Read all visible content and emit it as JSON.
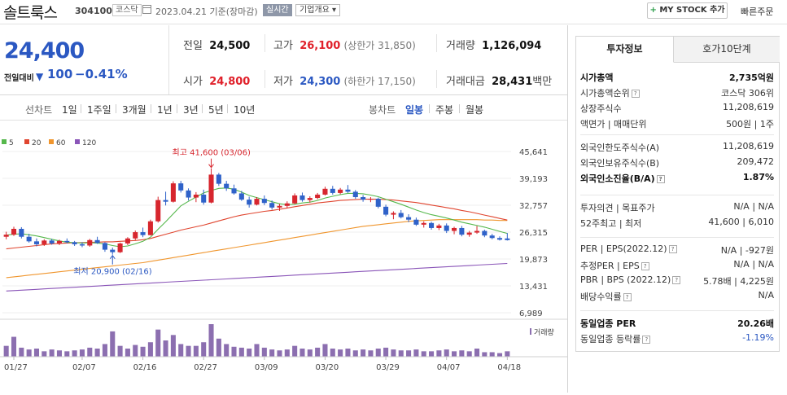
{
  "header": {
    "stock_name": "솔트룩스",
    "stock_code": "304100",
    "market": "코스닥",
    "as_of": "2023.04.21  기준(장마감)",
    "realtime_label": "실시간",
    "corp_info_label": "기업개요 ▾",
    "mystock_label": "MY STOCK 추가",
    "quick_order_label": "빠른주문"
  },
  "price": {
    "current": "24,400",
    "change_label": "전일대비",
    "change_arrow": "▼",
    "change_value": "100",
    "change_pct": "−0.41%"
  },
  "quote": {
    "prev_close_label": "전일",
    "prev_close": "24,500",
    "high_label": "고가",
    "high": "26,100",
    "upper_limit": "(상한가 31,850)",
    "volume_label": "거래량",
    "volume": "1,126,094",
    "open_label": "시가",
    "open": "24,800",
    "low_label": "저가",
    "low": "24,300",
    "lower_limit": "(하한가 17,150)",
    "amount_label": "거래대금",
    "amount": "28,431",
    "amount_unit": "백만"
  },
  "periods": {
    "line_label": "선차트",
    "line_items": [
      "1일",
      "1주일",
      "3개월",
      "1년",
      "3년",
      "5년",
      "10년"
    ],
    "candle_label": "봉차트",
    "candle_items": [
      "일봉",
      "주봉",
      "월봉"
    ],
    "candle_active": "일봉"
  },
  "legend": [
    {
      "label": "5",
      "color": "#56b84c"
    },
    {
      "label": "20",
      "color": "#e0452f"
    },
    {
      "label": "60",
      "color": "#f0962e"
    },
    {
      "label": "120",
      "color": "#8a55b8"
    }
  ],
  "chart_data": {
    "type": "candlestick",
    "y_ticks": [
      "45,641",
      "39,193",
      "32,757",
      "26,315",
      "19,873",
      "13,431",
      "6,989"
    ],
    "ylim": [
      6989,
      45641
    ],
    "x_ticks": [
      "01/27",
      "02/07",
      "02/16",
      "02/27",
      "03/09",
      "03/20",
      "03/29",
      "04/07",
      "04/18"
    ],
    "annotations": {
      "high": "최고 41,600 (03/06)",
      "low": "최저 20,900 (02/16)"
    },
    "volume_label": "거래량",
    "up_color": "#d7262e",
    "down_color": "#2f62c9",
    "candles": [
      [
        25200,
        26400,
        24600,
        25700
      ],
      [
        25700,
        27600,
        25400,
        27100
      ],
      [
        27100,
        27500,
        24800,
        25200
      ],
      [
        25200,
        25900,
        23800,
        24100
      ],
      [
        24100,
        24800,
        22900,
        23400
      ],
      [
        23400,
        24600,
        23000,
        24300
      ],
      [
        24300,
        24700,
        23300,
        23600
      ],
      [
        23600,
        24500,
        23200,
        24200
      ],
      [
        24200,
        24800,
        23600,
        23900
      ],
      [
        23900,
        24200,
        23000,
        23400
      ],
      [
        23400,
        23900,
        22700,
        23100
      ],
      [
        23100,
        24700,
        22800,
        24400
      ],
      [
        24400,
        25200,
        23500,
        23700
      ],
      [
        23700,
        23900,
        21600,
        22100
      ],
      [
        22100,
        22600,
        20900,
        21500
      ],
      [
        21500,
        23800,
        21300,
        23600
      ],
      [
        23600,
        25100,
        23200,
        24800
      ],
      [
        24800,
        26700,
        24400,
        26300
      ],
      [
        26300,
        27400,
        25100,
        25600
      ],
      [
        25600,
        29300,
        25500,
        28900
      ],
      [
        28900,
        34800,
        28600,
        34000
      ],
      [
        34000,
        36000,
        32700,
        33600
      ],
      [
        33600,
        38500,
        33400,
        38000
      ],
      [
        38000,
        38600,
        35800,
        36300
      ],
      [
        36300,
        36800,
        33900,
        34600
      ],
      [
        34600,
        35900,
        33500,
        35300
      ],
      [
        35300,
        36500,
        32900,
        33400
      ],
      [
        33400,
        41600,
        33200,
        40100
      ],
      [
        40100,
        40500,
        37400,
        37900
      ],
      [
        37900,
        38600,
        36200,
        36800
      ],
      [
        36800,
        37700,
        35300,
        35600
      ],
      [
        35600,
        36200,
        33800,
        34100
      ],
      [
        34100,
        34800,
        32200,
        32900
      ],
      [
        32900,
        34700,
        32700,
        34300
      ],
      [
        34300,
        35100,
        32800,
        33300
      ],
      [
        33300,
        33900,
        31700,
        32200
      ],
      [
        32200,
        33100,
        31400,
        32600
      ],
      [
        32600,
        33700,
        32100,
        33200
      ],
      [
        33200,
        35600,
        33000,
        35100
      ],
      [
        35100,
        35800,
        33600,
        34000
      ],
      [
        34000,
        34900,
        33400,
        34500
      ],
      [
        34500,
        35700,
        34200,
        35300
      ],
      [
        35300,
        37200,
        35100,
        36700
      ],
      [
        36700,
        37400,
        35300,
        35700
      ],
      [
        35700,
        36900,
        35400,
        36500
      ],
      [
        36500,
        37600,
        35700,
        36000
      ],
      [
        36000,
        36400,
        34300,
        34700
      ],
      [
        34700,
        35200,
        33600,
        34100
      ],
      [
        34100,
        34700,
        33500,
        34300
      ],
      [
        34300,
        34600,
        32000,
        32400
      ],
      [
        32400,
        32900,
        30100,
        30500
      ],
      [
        30500,
        31300,
        29400,
        30900
      ],
      [
        30900,
        31600,
        29600,
        29900
      ],
      [
        29900,
        30600,
        28700,
        29300
      ],
      [
        29300,
        29800,
        27800,
        28100
      ],
      [
        28100,
        28900,
        27400,
        28500
      ],
      [
        28500,
        28800,
        26900,
        27300
      ],
      [
        27300,
        28300,
        26800,
        27900
      ],
      [
        27900,
        28400,
        26100,
        26600
      ],
      [
        26600,
        27600,
        25800,
        27300
      ],
      [
        27300,
        27800,
        25300,
        25700
      ],
      [
        25700,
        26600,
        25200,
        26200
      ],
      [
        26200,
        27800,
        25900,
        26600
      ],
      [
        26600,
        26900,
        25100,
        25500
      ],
      [
        25500,
        25900,
        24600,
        24900
      ],
      [
        24900,
        25300,
        24300,
        24500
      ],
      [
        24800,
        26100,
        24300,
        24400
      ]
    ],
    "ma5": [
      25600,
      25800,
      25900,
      25700,
      25400,
      25000,
      24600,
      24200,
      23900,
      23800,
      23700,
      23800,
      23700,
      23500,
      23100,
      22800,
      23000,
      23500,
      24100,
      25100,
      27000,
      28800,
      30700,
      32600,
      33700,
      34700,
      35700,
      36300,
      36800,
      36900,
      36600,
      35900,
      35100,
      34600,
      34100,
      33600,
      33100,
      32900,
      33000,
      33300,
      33500,
      33900,
      34500,
      34900,
      35300,
      35600,
      35600,
      35500,
      35200,
      34800,
      34200,
      33600,
      33000,
      32300,
      31600,
      31000,
      30500,
      30100,
      29700,
      29200,
      28700,
      28300,
      27900,
      27500,
      27000,
      26500,
      26000
    ],
    "ma20": [
      22300,
      22500,
      22700,
      22900,
      23100,
      23300,
      23500,
      23600,
      23700,
      23800,
      23800,
      23900,
      23900,
      24000,
      24000,
      24100,
      24200,
      24300,
      24500,
      24800,
      25300,
      25800,
      26300,
      26800,
      27200,
      27600,
      28000,
      28500,
      29000,
      29500,
      30000,
      30400,
      30700,
      31000,
      31300,
      31500,
      31800,
      32100,
      32400,
      32700,
      33000,
      33300,
      33500,
      33700,
      33900,
      34000,
      34100,
      34200,
      34200,
      34200,
      34100,
      34000,
      33800,
      33600,
      33400,
      33100,
      32800,
      32500,
      32200,
      31900,
      31500,
      31200,
      30800,
      30400,
      30000,
      29600,
      29200
    ],
    "ma60": [
      15400,
      15600,
      15800,
      16000,
      16200,
      16400,
      16600,
      16800,
      17000,
      17200,
      17400,
      17600,
      17800,
      18000,
      18200,
      18400,
      18600,
      18800,
      19000,
      19300,
      19600,
      19900,
      20200,
      20500,
      20800,
      21100,
      21400,
      21700,
      22000,
      22300,
      22600,
      22900,
      23200,
      23500,
      23800,
      24100,
      24400,
      24700,
      25000,
      25300,
      25600,
      25900,
      26200,
      26500,
      26800,
      27100,
      27400,
      27700,
      27900,
      28100,
      28300,
      28500,
      28700,
      28900,
      29000,
      29100,
      29200,
      29300,
      29300,
      29300,
      29300,
      29300,
      29300,
      29200,
      29200,
      29100,
      29100
    ],
    "ma120": [
      12200,
      12300,
      12400,
      12500,
      12600,
      12700,
      12800,
      12900,
      13000,
      13100,
      13200,
      13300,
      13400,
      13500,
      13600,
      13700,
      13800,
      13900,
      14000,
      14100,
      14200,
      14300,
      14400,
      14500,
      14600,
      14700,
      14800,
      14900,
      15000,
      15100,
      15200,
      15300,
      15400,
      15500,
      15600,
      15700,
      15800,
      15900,
      16000,
      16100,
      16200,
      16300,
      16400,
      16500,
      16600,
      16700,
      16800,
      16900,
      17000,
      17100,
      17200,
      17300,
      17400,
      17500,
      17600,
      17700,
      17800,
      17900,
      18000,
      18100,
      18200,
      18300,
      18400,
      18500,
      18600,
      18700,
      18800
    ],
    "volume": [
      12,
      22,
      10,
      8,
      9,
      6,
      8,
      7,
      6,
      7,
      8,
      10,
      9,
      14,
      28,
      12,
      9,
      13,
      11,
      16,
      30,
      18,
      24,
      14,
      12,
      12,
      16,
      36,
      20,
      14,
      11,
      10,
      9,
      14,
      10,
      8,
      7,
      8,
      12,
      9,
      8,
      10,
      14,
      9,
      8,
      9,
      7,
      8,
      7,
      9,
      10,
      8,
      7,
      7,
      8,
      6,
      6,
      7,
      8,
      6,
      7,
      6,
      9,
      5,
      5,
      4,
      6
    ]
  },
  "right_panel": {
    "tab_invest": "투자정보",
    "tab_hoga": "호가10단계",
    "rows1": [
      {
        "l": "시가총액",
        "v": "2,735억원",
        "b": true
      },
      {
        "l": "시가총액순위",
        "v": "코스닥 306위",
        "b": false
      },
      {
        "l": "상장주식수",
        "v": "11,208,619",
        "b": false
      },
      {
        "l": "액면가 | 매매단위",
        "v": "500원 | 1주",
        "b": false
      }
    ],
    "rows2": [
      {
        "l": "외국인한도주식수(A)",
        "v": "11,208,619",
        "b": false
      },
      {
        "l": "외국인보유주식수(B)",
        "v": "209,472",
        "b": false
      },
      {
        "l": "외국인소진율(B/A)",
        "v": "1.87%",
        "b": true
      }
    ],
    "rows3": [
      {
        "l": "투자의견 | 목표주가",
        "v": "N/A | N/A",
        "b": false
      },
      {
        "l": "52주최고 | 최저",
        "v": "41,600 | 6,010",
        "b": false
      }
    ],
    "rows4": [
      {
        "l": "PER | EPS(2022.12)",
        "v": "N/A | -927원",
        "b": false
      },
      {
        "l": "추정PER | EPS",
        "v": "N/A | N/A",
        "b": false
      },
      {
        "l": "PBR | BPS (2022.12)",
        "v": "5.78배 | 4,225원",
        "b": false
      },
      {
        "l": "배당수익률",
        "v": "N/A",
        "b": false
      }
    ],
    "rows5": [
      {
        "l": "동일업종 PER",
        "v": "20.26배",
        "b": true
      },
      {
        "l": "동일업종 등락률",
        "v": "-1.19%",
        "b": false,
        "blue": true
      }
    ]
  }
}
